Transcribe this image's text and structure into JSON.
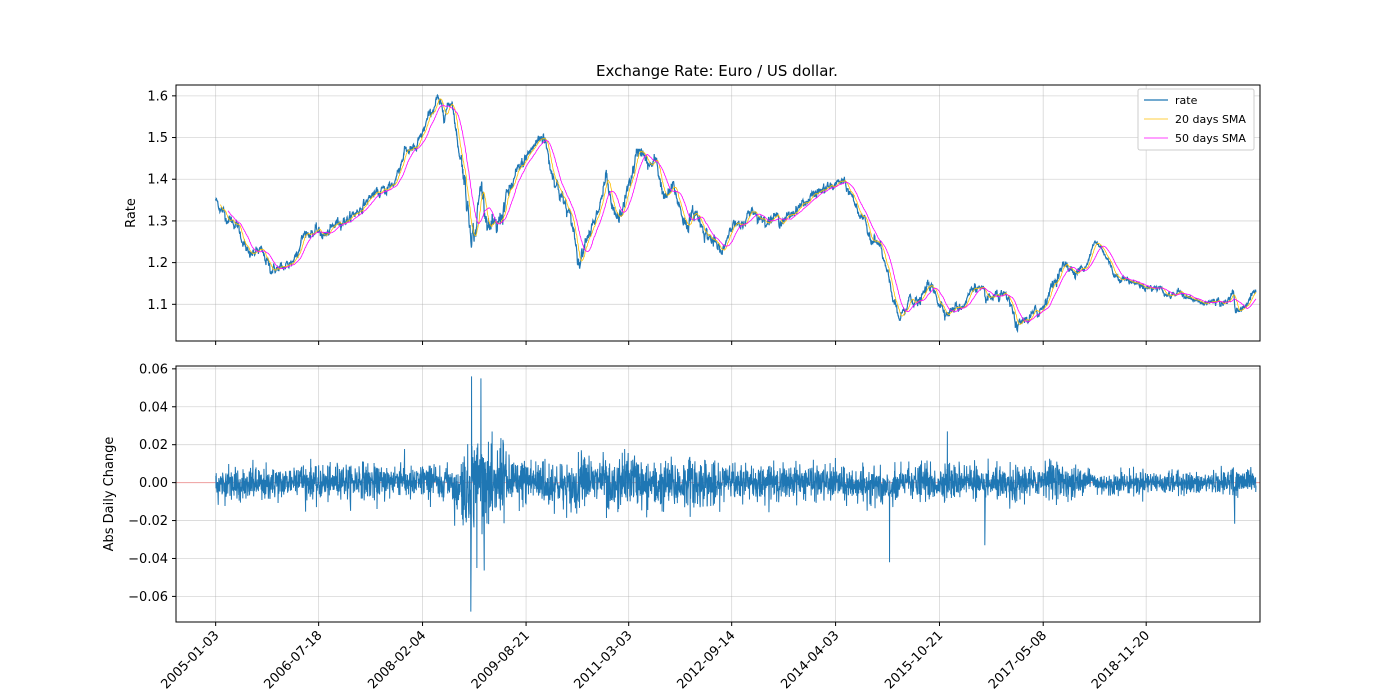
{
  "chart_data": [
    {
      "type": "line",
      "title": "Exchange Rate: Euro / US dollar.",
      "xlabel": "",
      "ylabel": "Rate",
      "x_range": [
        "2004-06-01",
        "2020-08-01"
      ],
      "ylim": [
        1.012,
        1.626
      ],
      "yticks": [
        1.1,
        1.2,
        1.3,
        1.4,
        1.5,
        1.6
      ],
      "ytick_labels": [
        "1.1",
        "1.2",
        "1.3",
        "1.4",
        "1.5",
        "1.6"
      ],
      "grid": true,
      "legend": "top-right",
      "series": [
        {
          "name": "rate",
          "color": "#1f77b4",
          "x": [
            "2005-01-03",
            "2005-03-01",
            "2005-05-01",
            "2005-07-01",
            "2005-09-01",
            "2005-11-01",
            "2006-01-01",
            "2006-03-01",
            "2006-05-01",
            "2006-07-01",
            "2006-09-01",
            "2006-11-01",
            "2007-01-01",
            "2007-03-01",
            "2007-05-01",
            "2007-07-01",
            "2007-09-01",
            "2007-11-01",
            "2008-01-01",
            "2008-03-01",
            "2008-04-22",
            "2008-06-01",
            "2008-07-15",
            "2008-08-15",
            "2008-09-15",
            "2008-10-15",
            "2008-11-15",
            "2008-12-20",
            "2009-02-01",
            "2009-03-10",
            "2009-05-01",
            "2009-07-01",
            "2009-09-01",
            "2009-11-25",
            "2010-01-01",
            "2010-03-01",
            "2010-05-01",
            "2010-06-07",
            "2010-07-15",
            "2010-09-01",
            "2010-11-01",
            "2010-12-01",
            "2011-01-10",
            "2011-03-01",
            "2011-05-02",
            "2011-06-15",
            "2011-08-01",
            "2011-09-15",
            "2011-11-01",
            "2012-01-10",
            "2012-03-01",
            "2012-05-01",
            "2012-07-24",
            "2012-09-15",
            "2012-11-01",
            "2013-01-01",
            "2013-03-01",
            "2013-05-01",
            "2013-07-01",
            "2013-09-01",
            "2013-11-01",
            "2014-01-01",
            "2014-03-01",
            "2014-05-06",
            "2014-07-01",
            "2014-09-01",
            "2014-10-15",
            "2014-12-01",
            "2015-01-15",
            "2015-03-16",
            "2015-04-15",
            "2015-05-15",
            "2015-07-01",
            "2015-08-24",
            "2015-10-01",
            "2015-12-01",
            "2016-01-15",
            "2016-03-01",
            "2016-05-02",
            "2016-07-01",
            "2016-09-01",
            "2016-11-01",
            "2016-12-20",
            "2017-01-15",
            "2017-03-01",
            "2017-05-01",
            "2017-07-01",
            "2017-09-08",
            "2017-11-01",
            "2018-01-01",
            "2018-02-16",
            "2018-04-01",
            "2018-06-01",
            "2018-08-01",
            "2018-10-01",
            "2018-12-01",
            "2019-02-01",
            "2019-04-01",
            "2019-06-01",
            "2019-08-01",
            "2019-10-01",
            "2019-12-01",
            "2020-02-01",
            "2020-03-09",
            "2020-03-20",
            "2020-05-01",
            "2020-06-15",
            "2020-07-10"
          ],
          "values": [
            1.35,
            1.31,
            1.29,
            1.215,
            1.23,
            1.185,
            1.185,
            1.205,
            1.27,
            1.275,
            1.265,
            1.3,
            1.305,
            1.33,
            1.36,
            1.37,
            1.39,
            1.47,
            1.47,
            1.54,
            1.59,
            1.56,
            1.59,
            1.48,
            1.42,
            1.3,
            1.265,
            1.39,
            1.28,
            1.27,
            1.35,
            1.41,
            1.46,
            1.51,
            1.43,
            1.36,
            1.29,
            1.2,
            1.27,
            1.29,
            1.4,
            1.32,
            1.3,
            1.38,
            1.48,
            1.43,
            1.44,
            1.35,
            1.38,
            1.29,
            1.32,
            1.27,
            1.22,
            1.3,
            1.28,
            1.33,
            1.3,
            1.31,
            1.3,
            1.33,
            1.35,
            1.37,
            1.38,
            1.395,
            1.36,
            1.3,
            1.26,
            1.24,
            1.16,
            1.06,
            1.08,
            1.12,
            1.1,
            1.15,
            1.12,
            1.08,
            1.09,
            1.1,
            1.15,
            1.11,
            1.12,
            1.11,
            1.04,
            1.06,
            1.07,
            1.09,
            1.15,
            1.2,
            1.17,
            1.2,
            1.25,
            1.23,
            1.17,
            1.16,
            1.15,
            1.14,
            1.14,
            1.12,
            1.13,
            1.11,
            1.1,
            1.11,
            1.1,
            1.14,
            1.08,
            1.09,
            1.12,
            1.135
          ]
        },
        {
          "name": "20 days SMA",
          "color": "#ffbf00",
          "window": 20
        },
        {
          "name": "50 days SMA",
          "color": "#ff00ff",
          "window": 50
        }
      ]
    },
    {
      "type": "line",
      "title": "",
      "xlabel": "",
      "ylabel": "Abs Daily Change",
      "x_range": [
        "2004-06-01",
        "2020-08-01"
      ],
      "ylim": [
        -0.0735,
        0.0615
      ],
      "yticks": [
        -0.06,
        -0.04,
        -0.02,
        0.0,
        0.02,
        0.04,
        0.06
      ],
      "ytick_labels": [
        "−0.06",
        "−0.04",
        "−0.02",
        "0.00",
        "0.02",
        "0.04",
        "0.06"
      ],
      "reference_line": {
        "y": 0.0,
        "color": "#f0a0a0"
      },
      "grid": true,
      "series": [
        {
          "name": "",
          "color": "#1f77b4",
          "source": "daily differences of rate",
          "extremes": [
            {
              "x": "2008-10-24",
              "y": -0.068
            },
            {
              "x": "2008-10-28",
              "y": 0.056
            },
            {
              "x": "2008-12-18",
              "y": 0.055
            },
            {
              "x": "2008-11-26",
              "y": -0.045
            },
            {
              "x": "2015-01-22",
              "y": -0.042
            },
            {
              "x": "2016-06-24",
              "y": -0.033
            },
            {
              "x": "2015-12-03",
              "y": 0.027
            }
          ]
        }
      ]
    }
  ],
  "x_ticks": [
    "2005-01-03",
    "2006-07-18",
    "2008-02-04",
    "2009-08-21",
    "2011-03-03",
    "2012-09-14",
    "2014-04-03",
    "2015-10-21",
    "2017-05-08",
    "2018-11-20"
  ]
}
